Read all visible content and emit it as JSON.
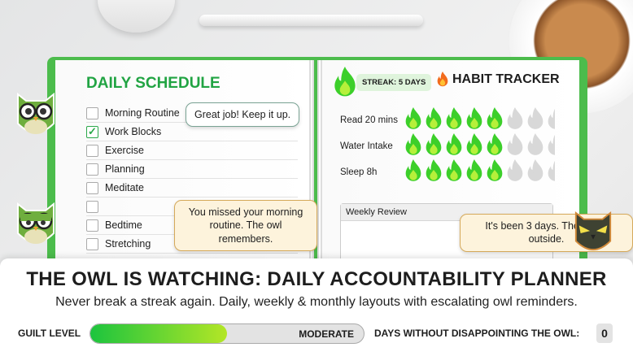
{
  "schedule": {
    "title": "DAILY SCHEDULE",
    "items": [
      {
        "label": "Morning Routine",
        "checked": false
      },
      {
        "label": "Work Blocks",
        "checked": true
      },
      {
        "label": "Exercise",
        "checked": false
      },
      {
        "label": "Planning",
        "checked": false
      },
      {
        "label": "Meditate",
        "checked": false
      },
      {
        "label": "",
        "checked": false
      },
      {
        "label": "Bedtime",
        "checked": false
      },
      {
        "label": "Stretching",
        "checked": false
      }
    ]
  },
  "tracker": {
    "streak": "STREAK: 5 DAYS",
    "title": "HABIT TRACKER",
    "habits": [
      {
        "label": "Read 20 mins",
        "done": 5,
        "total": 8
      },
      {
        "label": "Water Intake",
        "done": 5,
        "total": 8
      },
      {
        "label": "Sleep 8h",
        "done": 5,
        "total": 8
      }
    ],
    "review": "Weekly Review"
  },
  "owls": {
    "happy": "Great job! Keep it up.",
    "annoyed": "You missed your morning routine. The owl remembers.",
    "angry": "It's been 3 days. The owl is outside."
  },
  "banner": {
    "title": "THE OWL IS WATCHING: DAILY ACCOUNTABILITY PLANNER",
    "subtitle": "Never break a streak again. Daily, weekly & monthly layouts with escalating owl reminders.",
    "guilt_label": "GUILT LEVEL",
    "guilt_value": "MODERATE",
    "guilt_percent": 50,
    "days_label": "DAYS WITHOUT DISAPPOINTING THE OWL:",
    "days_count": "0"
  },
  "colors": {
    "accent": "#21a443",
    "flame_on": "#3ccf2a",
    "flame_off": "#d8d8d8"
  }
}
